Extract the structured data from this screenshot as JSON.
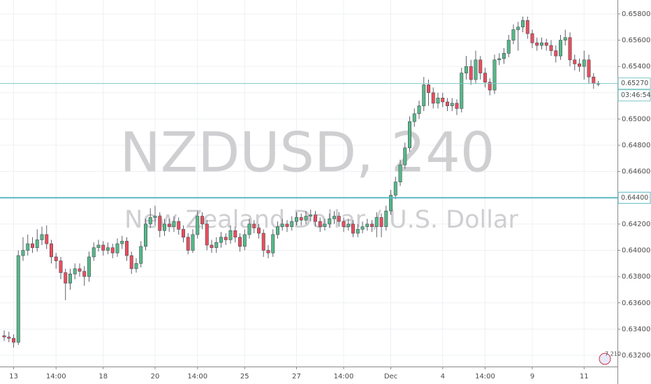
{
  "chart_data": {
    "type": "candlestick",
    "watermark": "NZDUSD, 240",
    "subtitle": "New Zealand Dollar / U.S. Dollar",
    "up_color": "#53b987",
    "down_color": "#eb4d5c",
    "categories": [
      null,
      null,
      "13",
      null,
      null,
      null,
      null,
      null,
      null,
      null,
      null,
      "14:00",
      null,
      null,
      null,
      null,
      null,
      null,
      null,
      null,
      null,
      "18",
      null,
      null,
      null,
      null,
      null,
      null,
      null,
      null,
      null,
      null,
      "20",
      null,
      null,
      null,
      null,
      null,
      null,
      null,
      null,
      "14:00",
      null,
      null,
      null,
      null,
      null,
      null,
      null,
      null,
      null,
      "25",
      null,
      null,
      null,
      null,
      null,
      null,
      null,
      null,
      null,
      null,
      "27",
      null,
      null,
      null,
      null,
      null,
      null,
      null,
      null,
      null,
      "14:00",
      null,
      null,
      null,
      null,
      null,
      null,
      null,
      null,
      null,
      "Dec",
      null,
      null,
      null,
      null,
      null,
      null,
      null,
      null,
      null,
      null,
      "4",
      null,
      null,
      null,
      null,
      null,
      null,
      null,
      null,
      "14:00",
      null,
      null,
      null,
      null,
      null,
      null,
      null,
      null,
      null,
      "9",
      null,
      null,
      null,
      null,
      null,
      null,
      null,
      null,
      null,
      null,
      "11",
      null,
      null,
      null
    ],
    "open": [
      0.6335,
      0.6334,
      0.6333,
      0.633,
      0.6396,
      0.64,
      0.6405,
      0.6402,
      0.6408,
      0.6412,
      0.6405,
      0.6395,
      0.6392,
      0.6383,
      0.6375,
      0.6382,
      0.6386,
      0.6384,
      0.638,
      0.6395,
      0.6402,
      0.6404,
      0.64,
      0.6402,
      0.6398,
      0.6405,
      0.6407,
      0.6396,
      0.6386,
      0.639,
      0.6403,
      0.642,
      0.6425,
      0.6426,
      0.6415,
      0.642,
      0.6418,
      0.6422,
      0.6416,
      0.641,
      0.64,
      0.6412,
      0.6426,
      0.642,
      0.6404,
      0.6402,
      0.6406,
      0.641,
      0.6408,
      0.6415,
      0.641,
      0.6403,
      0.6412,
      0.642,
      0.6417,
      0.6413,
      0.64,
      0.6398,
      0.6412,
      0.6418,
      0.642,
      0.6418,
      0.6422,
      0.6425,
      0.6423,
      0.6426,
      0.6427,
      0.6422,
      0.6418,
      0.642,
      0.6424,
      0.6426,
      0.6422,
      0.6418,
      0.642,
      0.6413,
      0.6416,
      0.6418,
      0.642,
      0.6418,
      0.6425,
      0.6418,
      0.643,
      0.6442,
      0.6452,
      0.6465,
      0.6478,
      0.6498,
      0.6504,
      0.651,
      0.6526,
      0.652,
      0.6512,
      0.6516,
      0.6513,
      0.651,
      0.6512,
      0.6508,
      0.6535,
      0.654,
      0.653,
      0.6545,
      0.6535,
      0.6528,
      0.6522,
      0.6545,
      0.6546,
      0.655,
      0.656,
      0.6568,
      0.657,
      0.6575,
      0.6565,
      0.6558,
      0.6556,
      0.6558,
      0.6556,
      0.6552,
      0.6548,
      0.656,
      0.6562,
      0.6545,
      0.6542,
      0.654,
      0.6545,
      0.6532,
      0.6527
    ],
    "high": [
      0.6339,
      0.6338,
      0.6336,
      0.64,
      0.641,
      0.6412,
      0.641,
      0.6416,
      0.6418,
      0.6419,
      0.6408,
      0.6398,
      0.6395,
      0.6386,
      0.6386,
      0.639,
      0.639,
      0.6388,
      0.6399,
      0.6406,
      0.6408,
      0.6407,
      0.6406,
      0.6405,
      0.6409,
      0.6411,
      0.641,
      0.6399,
      0.6394,
      0.6407,
      0.6424,
      0.6432,
      0.6434,
      0.6429,
      0.6424,
      0.6424,
      0.6426,
      0.6425,
      0.6419,
      0.6413,
      0.6416,
      0.643,
      0.6429,
      0.6423,
      0.6408,
      0.641,
      0.6414,
      0.6413,
      0.6419,
      0.6418,
      0.6413,
      0.6416,
      0.6424,
      0.6423,
      0.642,
      0.6416,
      0.6404,
      0.6416,
      0.6422,
      0.6424,
      0.6423,
      0.6426,
      0.6429,
      0.6428,
      0.643,
      0.6431,
      0.643,
      0.6425,
      0.6424,
      0.6428,
      0.643,
      0.6429,
      0.6425,
      0.6424,
      0.6423,
      0.642,
      0.6422,
      0.6424,
      0.6423,
      0.6429,
      0.6428,
      0.6434,
      0.6446,
      0.6456,
      0.6469,
      0.6482,
      0.6502,
      0.6508,
      0.6514,
      0.6532,
      0.653,
      0.6524,
      0.652,
      0.652,
      0.6516,
      0.6516,
      0.6515,
      0.6539,
      0.6548,
      0.6545,
      0.6552,
      0.6548,
      0.6539,
      0.6531,
      0.6549,
      0.655,
      0.6554,
      0.6564,
      0.6572,
      0.6574,
      0.6578,
      0.6578,
      0.6568,
      0.6562,
      0.6562,
      0.6561,
      0.656,
      0.6556,
      0.6564,
      0.6568,
      0.6566,
      0.6549,
      0.6546,
      0.6552,
      0.6549,
      0.6535,
      0.6529
    ],
    "low": [
      0.6331,
      0.633,
      0.6326,
      0.6328,
      0.6392,
      0.6396,
      0.6398,
      0.6399,
      0.6404,
      0.6401,
      0.639,
      0.6386,
      0.6378,
      0.6362,
      0.637,
      0.6378,
      0.638,
      0.6373,
      0.6376,
      0.6392,
      0.6399,
      0.6396,
      0.6397,
      0.6394,
      0.6395,
      0.6401,
      0.6392,
      0.6382,
      0.6383,
      0.6387,
      0.64,
      0.6417,
      0.6419,
      0.641,
      0.6411,
      0.6414,
      0.6414,
      0.6412,
      0.6406,
      0.6397,
      0.6398,
      0.6409,
      0.6416,
      0.64,
      0.6398,
      0.6398,
      0.6402,
      0.6404,
      0.6405,
      0.6406,
      0.6399,
      0.64,
      0.6409,
      0.6413,
      0.6409,
      0.6395,
      0.6394,
      0.6395,
      0.6409,
      0.6415,
      0.6414,
      0.6415,
      0.6419,
      0.6419,
      0.642,
      0.6422,
      0.6418,
      0.6414,
      0.6415,
      0.6417,
      0.642,
      0.6418,
      0.6414,
      0.6415,
      0.641,
      0.641,
      0.6413,
      0.6415,
      0.6414,
      0.641,
      0.641,
      0.6415,
      0.6427,
      0.6439,
      0.6449,
      0.6462,
      0.6475,
      0.6494,
      0.65,
      0.6506,
      0.651,
      0.6508,
      0.6508,
      0.6509,
      0.6506,
      0.6506,
      0.6503,
      0.6505,
      0.653,
      0.6526,
      0.6527,
      0.653,
      0.6524,
      0.6518,
      0.6519,
      0.6541,
      0.6542,
      0.6547,
      0.6557,
      0.6552,
      0.6566,
      0.6561,
      0.6554,
      0.6552,
      0.6553,
      0.6552,
      0.6548,
      0.6543,
      0.6545,
      0.6556,
      0.654,
      0.6537,
      0.6536,
      0.653,
      0.6527,
      0.6523,
      0.6525
    ],
    "close": [
      0.6334,
      0.6333,
      0.633,
      0.6396,
      0.64,
      0.6405,
      0.6402,
      0.6408,
      0.6412,
      0.6405,
      0.6395,
      0.6392,
      0.6383,
      0.6375,
      0.6382,
      0.6386,
      0.6384,
      0.638,
      0.6395,
      0.6402,
      0.6404,
      0.64,
      0.6402,
      0.6398,
      0.6405,
      0.6407,
      0.6396,
      0.6386,
      0.639,
      0.6403,
      0.642,
      0.6425,
      0.6426,
      0.6415,
      0.642,
      0.6418,
      0.6422,
      0.6416,
      0.641,
      0.64,
      0.6412,
      0.6426,
      0.642,
      0.6404,
      0.6402,
      0.6406,
      0.641,
      0.6408,
      0.6415,
      0.641,
      0.6403,
      0.6412,
      0.642,
      0.6417,
      0.6413,
      0.64,
      0.6398,
      0.6412,
      0.6418,
      0.642,
      0.6418,
      0.6422,
      0.6425,
      0.6423,
      0.6426,
      0.6427,
      0.6422,
      0.6418,
      0.642,
      0.6424,
      0.6426,
      0.6422,
      0.6418,
      0.642,
      0.6413,
      0.6416,
      0.6418,
      0.642,
      0.6418,
      0.6425,
      0.6418,
      0.643,
      0.6442,
      0.6452,
      0.6465,
      0.6478,
      0.6498,
      0.6504,
      0.651,
      0.6526,
      0.652,
      0.6512,
      0.6516,
      0.6513,
      0.651,
      0.6512,
      0.6508,
      0.6535,
      0.654,
      0.653,
      0.6545,
      0.6535,
      0.6528,
      0.6522,
      0.6545,
      0.6546,
      0.655,
      0.656,
      0.6568,
      0.657,
      0.6575,
      0.6565,
      0.6558,
      0.6556,
      0.6558,
      0.6556,
      0.6552,
      0.6548,
      0.656,
      0.6562,
      0.6545,
      0.6542,
      0.654,
      0.6545,
      0.6532,
      0.6527,
      0.6527
    ],
    "ylim": [
      0.63115,
      0.65906
    ],
    "yticks": [
      {
        "value": 0.632,
        "label": "0.63200"
      },
      {
        "value": 0.634,
        "label": "0.63400"
      },
      {
        "value": 0.636,
        "label": "0.63600"
      },
      {
        "value": 0.638,
        "label": "0.63800"
      },
      {
        "value": 0.64,
        "label": "0.64000"
      },
      {
        "value": 0.642,
        "label": "0.64200"
      },
      {
        "value": 0.644,
        "label": "0.64400"
      },
      {
        "value": 0.646,
        "label": "0.64600"
      },
      {
        "value": 0.648,
        "label": "0.64800"
      },
      {
        "value": 0.65,
        "label": "0.65000"
      },
      {
        "value": 0.652,
        "label": "0.65200"
      },
      {
        "value": 0.654,
        "label": "0.65400"
      },
      {
        "value": 0.656,
        "label": "0.65600"
      },
      {
        "value": 0.658,
        "label": "0.65800"
      }
    ],
    "grid": true,
    "hlines": [
      {
        "value": 0.6527,
        "label": "0.65270",
        "color": "#7fc8c8",
        "width": 1
      },
      {
        "value": 0.644,
        "label": "0.64400",
        "color": "#5ab8c4",
        "width": 2
      }
    ],
    "countdown": "03:46:54",
    "badge": "7 210"
  }
}
